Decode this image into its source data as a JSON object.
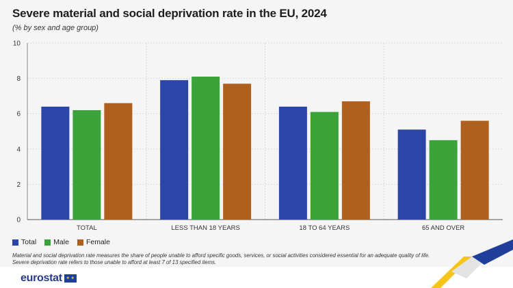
{
  "header": {
    "title": "Severe material and social deprivation rate in the EU, 2024",
    "subtitle": "(% by sex and age group)"
  },
  "legend": {
    "items": [
      {
        "label": "Total",
        "color": "#2b45a8"
      },
      {
        "label": "Male",
        "color": "#3aa33a"
      },
      {
        "label": "Female",
        "color": "#b0601e"
      }
    ]
  },
  "footnote": {
    "line1": "Material and social deprivation rate measures the share of people unable to afford specific goods, services, or social activities considered essential for an adequate quality of life.",
    "line2": "Severe deprivation rate refers to those unable to afford at least 7 of 13 specified items."
  },
  "brand": {
    "name": "eurostat",
    "flag_icon": "eu-flag-icon"
  },
  "chart_data": {
    "type": "bar",
    "categories": [
      "TOTAL",
      "LESS THAN 18 YEARS",
      "18 TO 64 YEARS",
      "65 AND OVER"
    ],
    "series": [
      {
        "name": "Total",
        "color": "#2b45a8",
        "values": [
          6.4,
          7.9,
          6.4,
          5.1
        ]
      },
      {
        "name": "Male",
        "color": "#3aa33a",
        "values": [
          6.2,
          8.1,
          6.1,
          4.5
        ]
      },
      {
        "name": "Female",
        "color": "#b0601e",
        "values": [
          6.6,
          7.7,
          6.7,
          5.6
        ]
      }
    ],
    "yticks": [
      0,
      2,
      4,
      6,
      8,
      10
    ],
    "ylim": [
      0,
      10
    ],
    "xlabel": "",
    "ylabel": "",
    "grid": true,
    "legend_position": "bottom-left"
  }
}
